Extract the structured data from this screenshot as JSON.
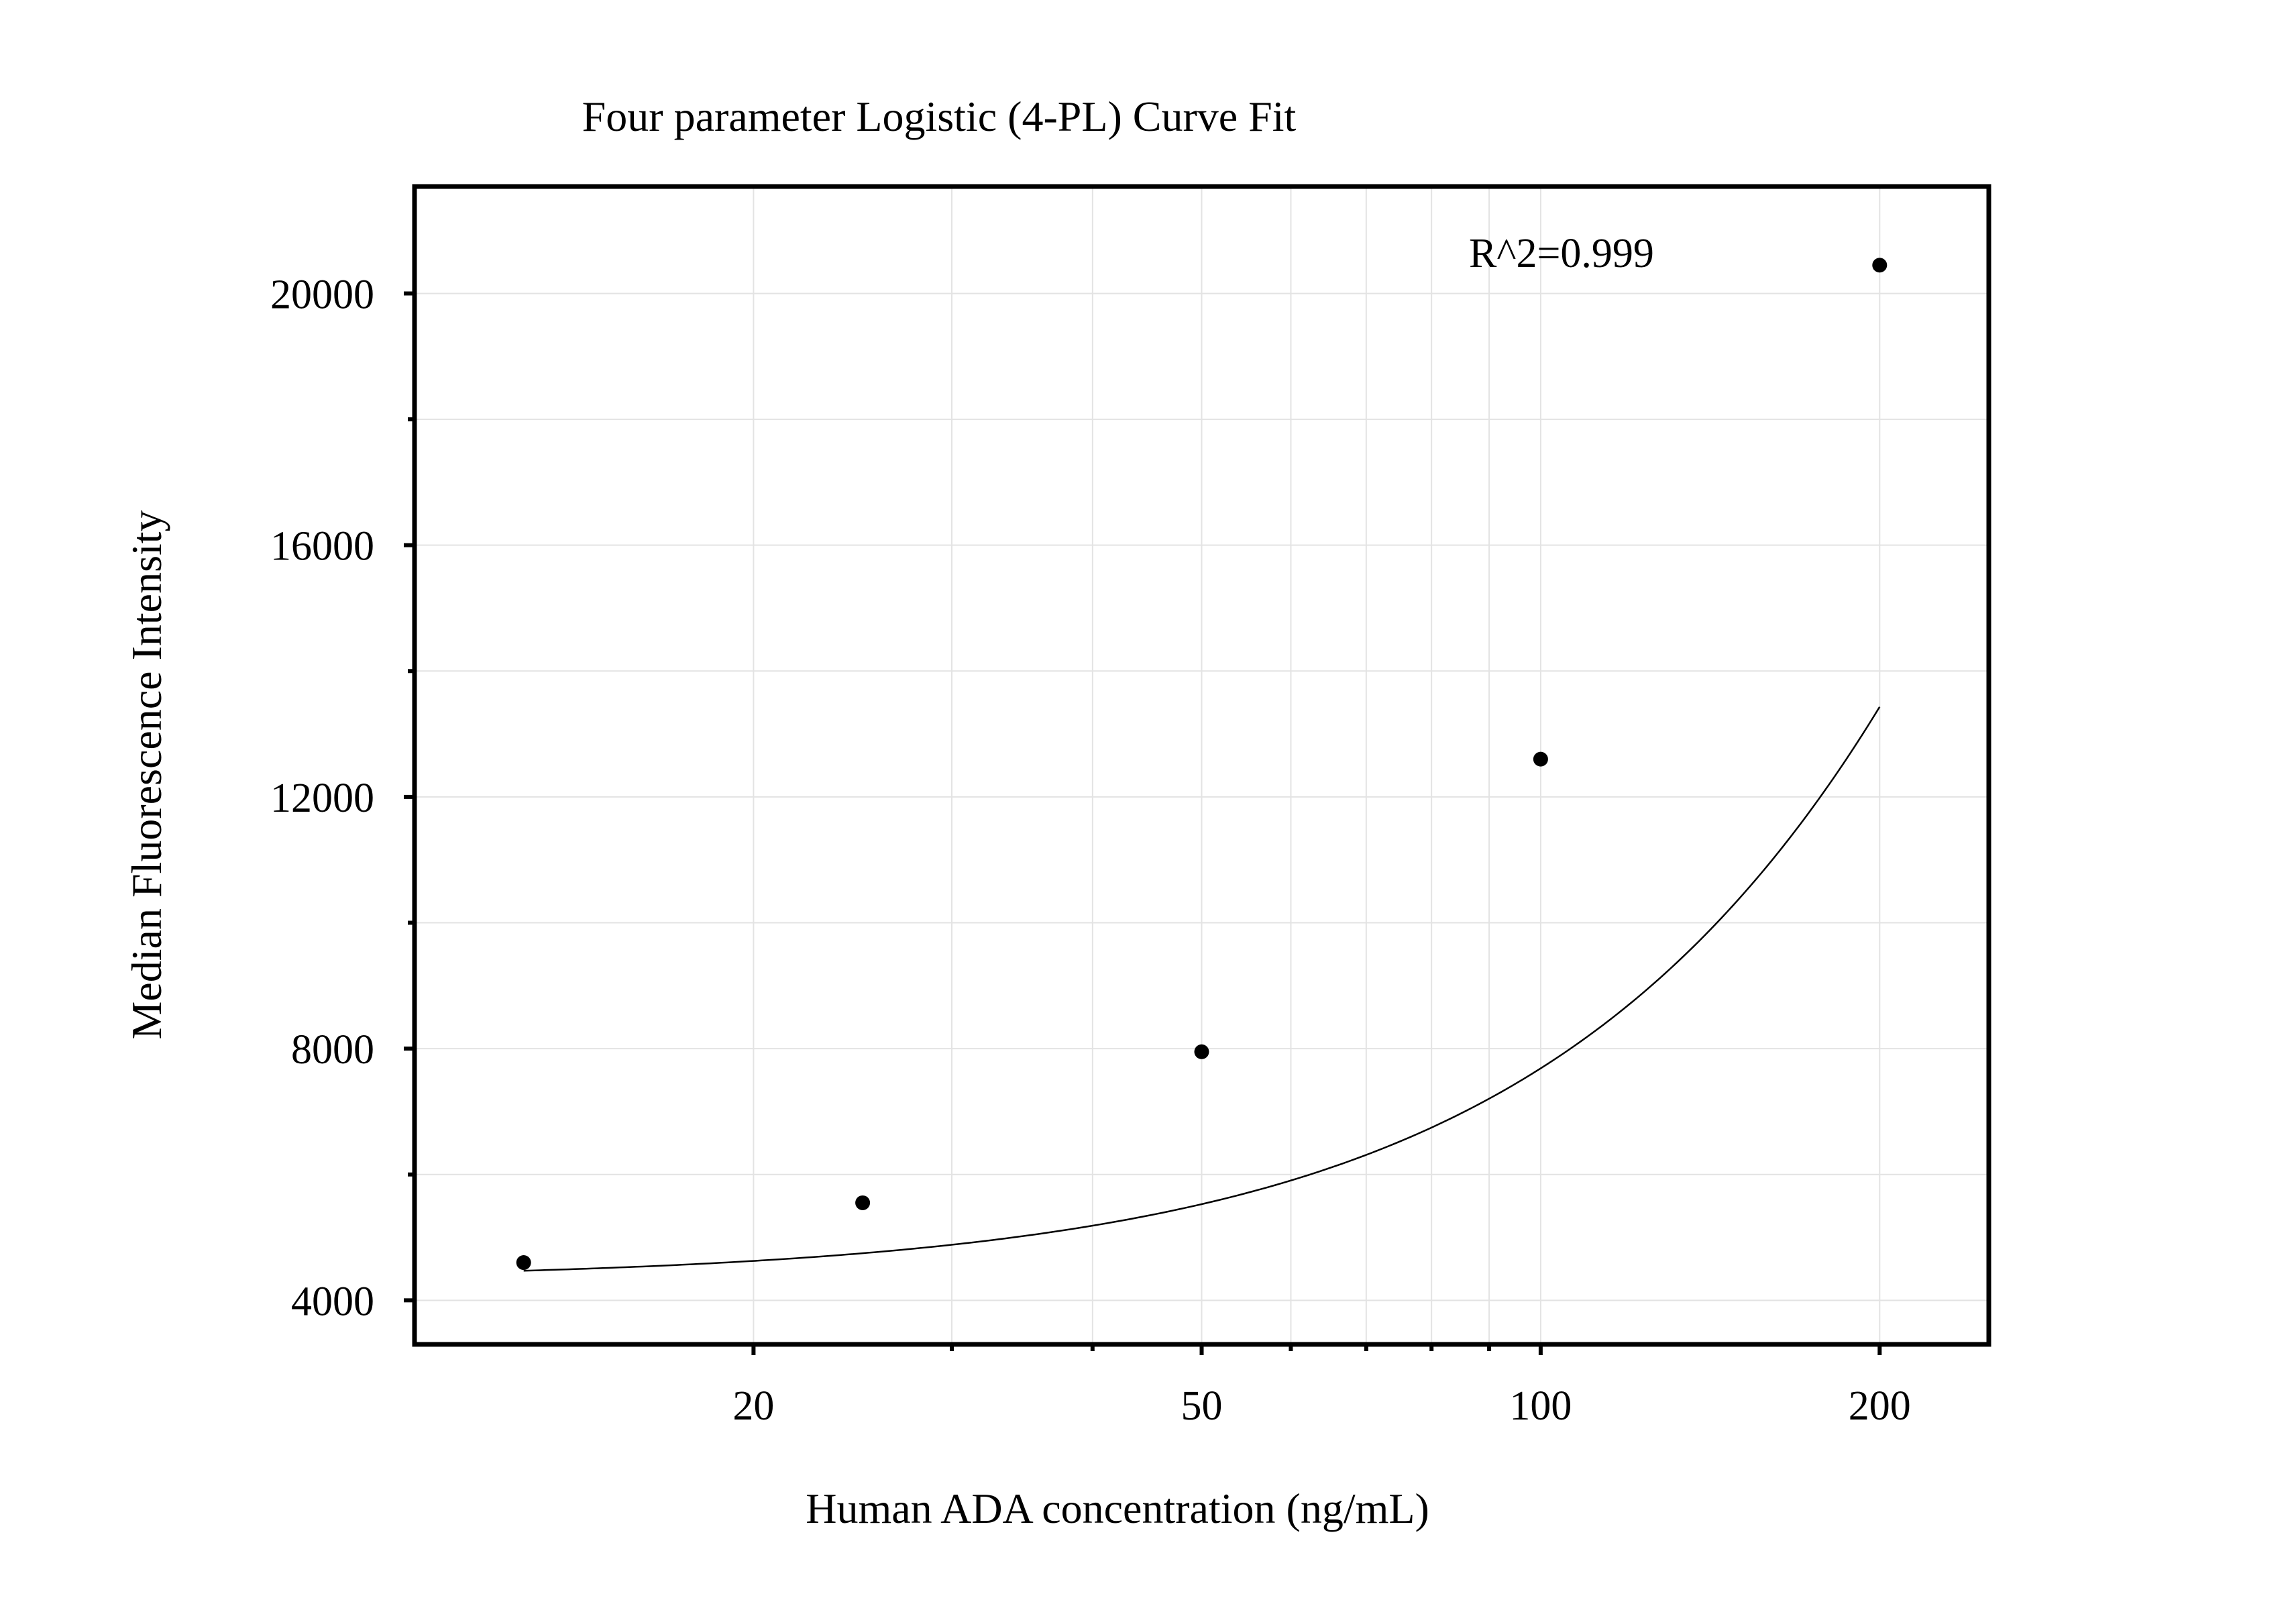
{
  "chart_data": {
    "type": "scatter",
    "title": "Four parameter Logistic (4-PL) Curve Fit",
    "xlabel": "Human ADA concentration (ng/mL)",
    "ylabel": "Median Fluorescence Intensity",
    "x_scale": "log",
    "xlim": [
      10,
      250
    ],
    "ylim": [
      3300,
      21700
    ],
    "x_ticks": [
      20,
      50,
      100,
      200
    ],
    "x_tick_labels": [
      "20",
      "50",
      "100",
      "200"
    ],
    "x_minor_ticks": [
      30,
      40,
      60,
      70,
      80,
      90
    ],
    "y_ticks": [
      4000,
      8000,
      12000,
      16000,
      20000
    ],
    "y_tick_labels": [
      "4000",
      "8000",
      "12000",
      "16000",
      "20000"
    ],
    "y_minor_ticks": [
      6000,
      10000,
      14000,
      18000
    ],
    "grid": true,
    "legend": "none",
    "annotation": "R^2=0.999",
    "series": [
      {
        "points": [
          {
            "x": 12.5,
            "y": 4600
          },
          {
            "x": 25,
            "y": 5550
          },
          {
            "x": 50,
            "y": 7950
          },
          {
            "x": 100,
            "y": 12600
          },
          {
            "x": 200,
            "y": 20450
          }
        ],
        "fit": {
          "model": "4-PL",
          "A": 4318,
          "D": 140000,
          "C": 1155.6,
          "B": 1.5
        }
      }
    ],
    "colors": {
      "points": "#000000",
      "curve": "#000000",
      "grid": "#e3e3e3"
    }
  }
}
